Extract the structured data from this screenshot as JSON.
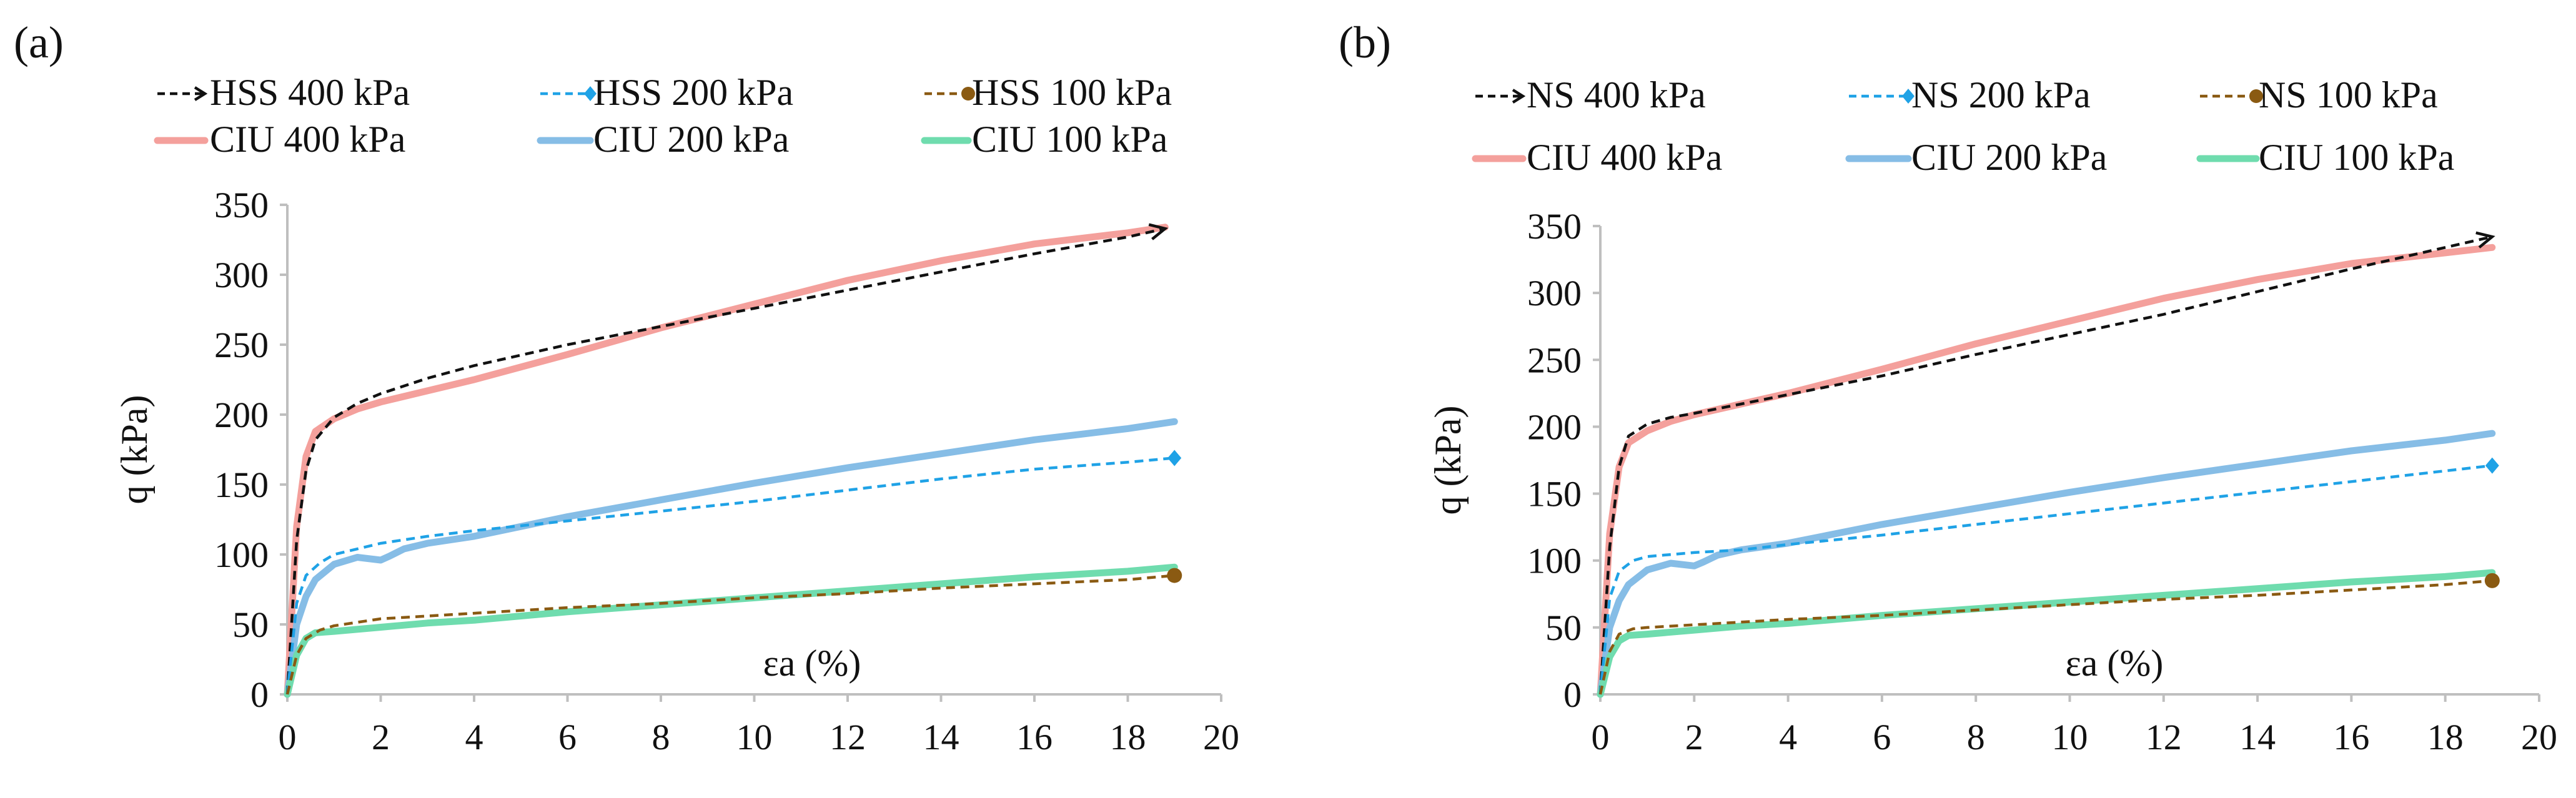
{
  "colors": {
    "axis": "#bfbfbf",
    "hss_400": "#111111",
    "hss_200": "#1fa2e6",
    "hss_100": "#8a5a12",
    "ciu_400": "#f4a09c",
    "ciu_200": "#86bde6",
    "ciu_100": "#6fdcae"
  },
  "chart_data": [
    {
      "type": "line",
      "panel_label": "(a)",
      "xlabel": "εa (%)",
      "ylabel": "q (kPa)",
      "xlim": [
        0,
        20
      ],
      "ylim": [
        0,
        350
      ],
      "xticks": [
        "0",
        "2",
        "4",
        "6",
        "8",
        "10",
        "12",
        "14",
        "16",
        "18",
        "20"
      ],
      "yticks": [
        "0",
        "50",
        "100",
        "150",
        "200",
        "250",
        "300",
        "350"
      ],
      "series": [
        {
          "name": "HSS 400 kPa",
          "key": "hss_400",
          "style": "dashed",
          "end_marker": "arrow",
          "x": [
            0,
            0.2,
            0.4,
            0.6,
            1.0,
            1.5,
            2,
            3,
            4,
            6,
            8,
            10,
            12,
            14,
            16,
            18,
            18.8
          ],
          "y": [
            0,
            110,
            160,
            182,
            198,
            208,
            215,
            226,
            235,
            250,
            263,
            276,
            289,
            302,
            315,
            327,
            333
          ]
        },
        {
          "name": "HSS 200 kPa",
          "key": "hss_200",
          "style": "dashed",
          "end_marker": "diamond",
          "x": [
            0,
            0.2,
            0.4,
            0.7,
            1,
            2,
            3,
            4,
            6,
            8,
            10,
            12,
            14,
            16,
            18,
            19
          ],
          "y": [
            0,
            65,
            85,
            94,
            100,
            108,
            113,
            117,
            124,
            131,
            138,
            146,
            154,
            161,
            166,
            169
          ]
        },
        {
          "name": "HSS 100 kPa",
          "key": "hss_100",
          "style": "dashed",
          "end_marker": "circle",
          "x": [
            0,
            0.2,
            0.4,
            0.7,
            1,
            2,
            4,
            6,
            8,
            10,
            12,
            14,
            16,
            18,
            19
          ],
          "y": [
            0,
            28,
            40,
            46,
            49,
            54,
            58,
            62,
            65,
            69,
            72,
            76,
            79,
            82,
            85
          ]
        },
        {
          "name": "CIU 400 kPa",
          "key": "ciu_400",
          "style": "solid",
          "end_marker": "none",
          "x": [
            0,
            0.2,
            0.4,
            0.6,
            1.0,
            1.5,
            2,
            3,
            4,
            5,
            6,
            8,
            10,
            12,
            14,
            16,
            18,
            18.8
          ],
          "y": [
            0,
            120,
            170,
            188,
            197,
            204,
            209,
            217,
            225,
            234,
            243,
            262,
            279,
            296,
            310,
            322,
            330,
            334
          ]
        },
        {
          "name": "CIU 200 kPa",
          "key": "ciu_200",
          "style": "solid",
          "end_marker": "none",
          "x": [
            0,
            0.2,
            0.4,
            0.6,
            1.0,
            1.5,
            2.0,
            2.2,
            2.5,
            3,
            4,
            5,
            6,
            8,
            10,
            12,
            14,
            15,
            16,
            17,
            18,
            19
          ],
          "y": [
            0,
            50,
            70,
            82,
            93,
            98,
            96,
            99,
            104,
            108,
            113,
            120,
            127,
            139,
            151,
            162,
            172,
            177,
            182,
            186,
            190,
            195
          ]
        },
        {
          "name": "CIU 100 kPa",
          "key": "ciu_100",
          "style": "solid",
          "end_marker": "none",
          "x": [
            0,
            0.2,
            0.4,
            0.6,
            1,
            2,
            3,
            4,
            6,
            8,
            10,
            12,
            14,
            16,
            18,
            19
          ],
          "y": [
            0,
            28,
            40,
            44,
            45,
            48,
            51,
            53,
            59,
            64,
            69,
            74,
            79,
            84,
            88,
            91
          ]
        }
      ],
      "legend": {
        "row1": [
          "HSS 400 kPa",
          "HSS 200 kPa",
          "HSS 100 kPa"
        ],
        "row2": [
          "CIU 400 kPa",
          "CIU 200 kPa",
          "CIU 100 kPa"
        ]
      }
    },
    {
      "type": "line",
      "panel_label": "(b)",
      "xlabel": "εa (%)",
      "ylabel": "q (kPa)",
      "xlim": [
        0,
        20
      ],
      "ylim": [
        0,
        350
      ],
      "xticks": [
        "0",
        "2",
        "4",
        "6",
        "8",
        "10",
        "12",
        "14",
        "16",
        "18",
        "20"
      ],
      "yticks": [
        "0",
        "50",
        "100",
        "150",
        "200",
        "250",
        "300",
        "350"
      ],
      "series": [
        {
          "name": "NS 400 kPa",
          "key": "hss_400",
          "style": "dashed",
          "end_marker": "arrow",
          "x": [
            0,
            0.2,
            0.4,
            0.6,
            1.0,
            1.5,
            2,
            3,
            4,
            6,
            8,
            10,
            12,
            14,
            16,
            18,
            19
          ],
          "y": [
            0,
            110,
            170,
            193,
            202,
            207,
            210,
            217,
            224,
            238,
            254,
            269,
            284,
            301,
            318,
            334,
            342
          ]
        },
        {
          "name": "NS 200 kPa",
          "key": "hss_200",
          "style": "dashed",
          "end_marker": "diamond",
          "x": [
            0,
            0.2,
            0.4,
            0.7,
            1,
            2,
            3,
            4,
            6,
            8,
            10,
            12,
            14,
            16,
            18,
            19
          ],
          "y": [
            0,
            72,
            92,
            100,
            103,
            106,
            108,
            112,
            119,
            127,
            135,
            143,
            151,
            159,
            167,
            171
          ]
        },
        {
          "name": "NS 100 kPa",
          "key": "hss_100",
          "style": "dashed",
          "end_marker": "circle",
          "x": [
            0,
            0.2,
            0.4,
            0.7,
            1,
            2,
            4,
            6,
            8,
            10,
            12,
            14,
            16,
            18,
            19
          ],
          "y": [
            0,
            32,
            45,
            49,
            50,
            52,
            56,
            59,
            63,
            67,
            71,
            74,
            78,
            82,
            85
          ]
        },
        {
          "name": "CIU 400 kPa",
          "key": "ciu_400",
          "style": "solid",
          "end_marker": "none",
          "x": [
            0,
            0.2,
            0.4,
            0.6,
            1.0,
            1.5,
            2,
            3,
            4,
            5,
            6,
            8,
            10,
            12,
            14,
            16,
            18,
            19
          ],
          "y": [
            0,
            120,
            170,
            188,
            197,
            204,
            209,
            217,
            225,
            234,
            243,
            262,
            279,
            296,
            310,
            322,
            330,
            334
          ]
        },
        {
          "name": "CIU 200 kPa",
          "key": "ciu_200",
          "style": "solid",
          "end_marker": "none",
          "x": [
            0,
            0.2,
            0.4,
            0.6,
            1.0,
            1.5,
            2.0,
            2.2,
            2.5,
            3,
            4,
            5,
            6,
            8,
            10,
            12,
            14,
            15,
            16,
            17,
            18,
            19
          ],
          "y": [
            0,
            50,
            70,
            82,
            93,
            98,
            96,
            99,
            104,
            108,
            113,
            120,
            127,
            139,
            151,
            162,
            172,
            177,
            182,
            186,
            190,
            195
          ]
        },
        {
          "name": "CIU 100 kPa",
          "key": "ciu_100",
          "style": "solid",
          "end_marker": "none",
          "x": [
            0,
            0.2,
            0.4,
            0.6,
            1,
            2,
            3,
            4,
            6,
            8,
            10,
            12,
            14,
            16,
            18,
            19
          ],
          "y": [
            0,
            28,
            40,
            44,
            45,
            48,
            51,
            53,
            59,
            64,
            69,
            74,
            79,
            84,
            88,
            91
          ]
        }
      ],
      "legend": {
        "row1": [
          "NS 400 kPa",
          "NS 200 kPa",
          "NS 100 kPa"
        ],
        "row2": [
          "CIU 400 kPa",
          "CIU 200 kPa",
          "CIU 100 kPa"
        ]
      }
    }
  ]
}
